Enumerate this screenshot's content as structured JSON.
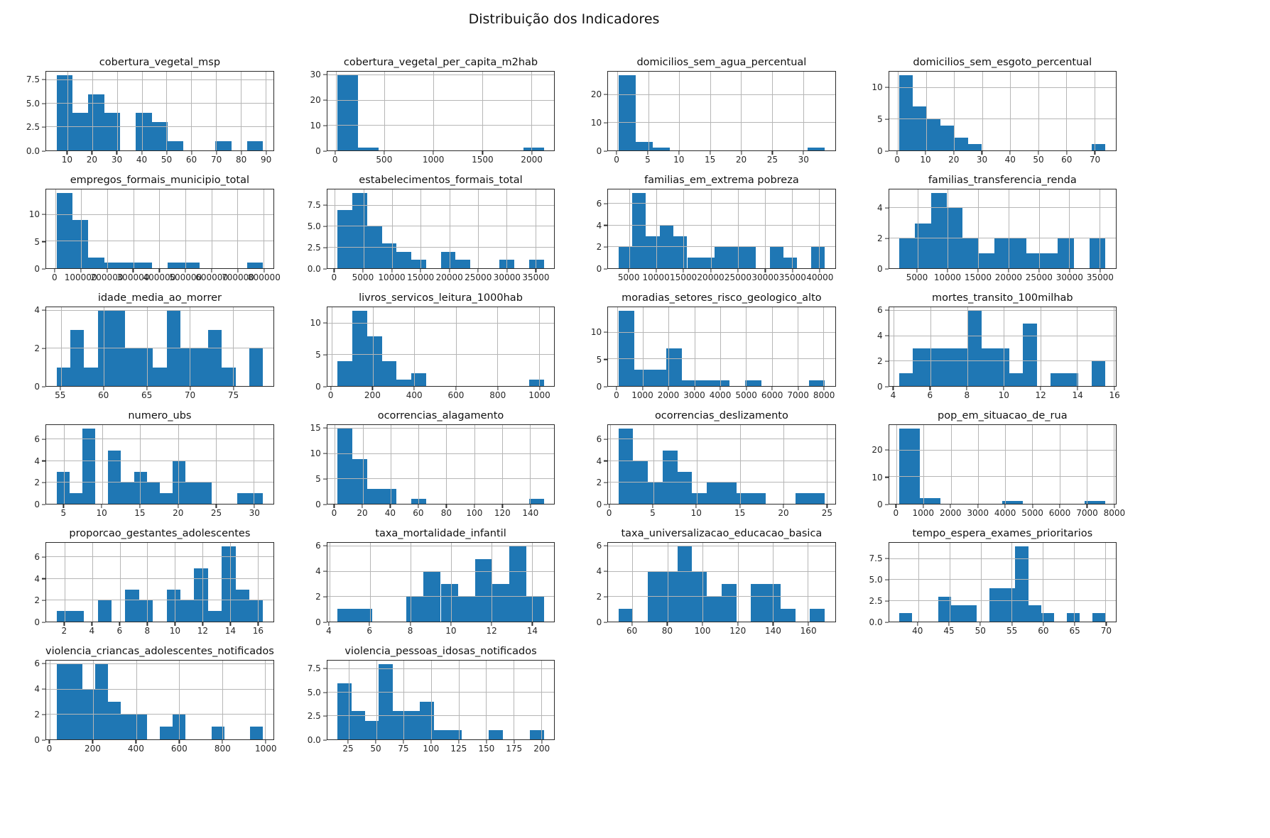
{
  "figure": {
    "title": "Distribuição dos Indicadores"
  },
  "colors": {
    "bar": "#1f77b4",
    "grid": "#b6b6b6",
    "spine": "#2b2b2b",
    "text": "#262626"
  },
  "chart_data": [
    {
      "type": "histogram",
      "title": "cobertura_vegetal_msp",
      "bin_start": 5.5,
      "bin_end": 89,
      "bins": [
        8,
        4,
        6,
        4,
        0,
        4,
        3,
        1,
        0,
        0,
        1,
        0,
        1
      ],
      "xticks": [
        10,
        20,
        30,
        40,
        50,
        60,
        70,
        80,
        90
      ],
      "yticks": [
        {
          "v": 0,
          "label": "0.0"
        },
        {
          "v": 2.5,
          "label": "2.5"
        },
        {
          "v": 5,
          "label": "5.0"
        },
        {
          "v": 7.5,
          "label": "7.5"
        }
      ]
    },
    {
      "type": "histogram",
      "title": "cobertura_vegetal_per_capita_m2hab",
      "bin_start": 20,
      "bin_end": 2130,
      "bins": [
        30,
        1,
        0,
        0,
        0,
        0,
        0,
        0,
        0,
        1
      ],
      "xticks": [
        0,
        500,
        1000,
        1500,
        2000
      ],
      "yticks": [
        {
          "v": 0,
          "label": "0"
        },
        {
          "v": 10,
          "label": "10"
        },
        {
          "v": 20,
          "label": "20"
        },
        {
          "v": 30,
          "label": "30"
        }
      ]
    },
    {
      "type": "histogram",
      "title": "domicilios_sem_agua_percentual",
      "bin_start": 0.2,
      "bin_end": 33.5,
      "bins": [
        27,
        3,
        1,
        0,
        0,
        0,
        0,
        0,
        0,
        0,
        0,
        1
      ],
      "xticks": [
        0,
        5,
        10,
        15,
        20,
        25,
        30
      ],
      "yticks": [
        {
          "v": 0,
          "label": "0"
        },
        {
          "v": 10,
          "label": "10"
        },
        {
          "v": 20,
          "label": "20"
        }
      ]
    },
    {
      "type": "histogram",
      "title": "domicilios_sem_esgoto_percentual",
      "bin_start": 0.5,
      "bin_end": 74,
      "bins": [
        12,
        7,
        5,
        4,
        2,
        1,
        0,
        0,
        0,
        0,
        0,
        0,
        0,
        0,
        1
      ],
      "xticks": [
        0,
        10,
        20,
        30,
        40,
        50,
        60,
        70
      ],
      "yticks": [
        {
          "v": 0,
          "label": "0"
        },
        {
          "v": 5,
          "label": "5"
        },
        {
          "v": 10,
          "label": "10"
        }
      ]
    },
    {
      "type": "histogram",
      "title": "empregos_formais_municipio_total",
      "bin_start": 5000,
      "bin_end": 798000,
      "bins": [
        14,
        9,
        2,
        1,
        1,
        1,
        0,
        1,
        1,
        0,
        0,
        0,
        1
      ],
      "xticks": [
        0,
        100000,
        200000,
        300000,
        400000,
        500000,
        600000,
        700000,
        800000
      ],
      "yticks": [
        {
          "v": 0,
          "label": "0"
        },
        {
          "v": 5,
          "label": "5"
        },
        {
          "v": 10,
          "label": "10"
        }
      ]
    },
    {
      "type": "histogram",
      "title": "estabelecimentos_formais_total",
      "bin_start": 500,
      "bin_end": 36500,
      "bins": [
        7,
        9,
        5,
        3,
        2,
        1,
        0,
        2,
        1,
        0,
        0,
        1,
        0,
        1
      ],
      "xticks": [
        0,
        5000,
        10000,
        15000,
        20000,
        25000,
        30000,
        35000
      ],
      "yticks": [
        {
          "v": 0,
          "label": "0.0"
        },
        {
          "v": 2.5,
          "label": "2.5"
        },
        {
          "v": 5,
          "label": "5.0"
        },
        {
          "v": 7.5,
          "label": "7.5"
        }
      ]
    },
    {
      "type": "histogram",
      "title": "familias_em_extrema pobreza",
      "bin_start": 3000,
      "bin_end": 41000,
      "bins": [
        2,
        7,
        3,
        4,
        3,
        1,
        1,
        2,
        2,
        2,
        0,
        2,
        1,
        0,
        2
      ],
      "xticks": [
        5000,
        10000,
        15000,
        20000,
        25000,
        30000,
        35000,
        40000
      ],
      "yticks": [
        {
          "v": 0,
          "label": "0"
        },
        {
          "v": 2,
          "label": "2"
        },
        {
          "v": 4,
          "label": "4"
        },
        {
          "v": 6,
          "label": "6"
        }
      ]
    },
    {
      "type": "histogram",
      "title": "familias_transferencia_renda",
      "bin_start": 2000,
      "bin_end": 36000,
      "bins": [
        2,
        3,
        5,
        4,
        2,
        1,
        2,
        2,
        1,
        1,
        2,
        0,
        2
      ],
      "xticks": [
        5000,
        10000,
        15000,
        20000,
        25000,
        30000,
        35000
      ],
      "yticks": [
        {
          "v": 0,
          "label": "0"
        },
        {
          "v": 2,
          "label": "2"
        },
        {
          "v": 4,
          "label": "4"
        }
      ]
    },
    {
      "type": "histogram",
      "title": "idade_media_ao_morrer",
      "bin_start": 54.5,
      "bin_end": 78.5,
      "bins": [
        1,
        3,
        1,
        4,
        4,
        2,
        2,
        1,
        4,
        2,
        2,
        3,
        1,
        0,
        2
      ],
      "xticks": [
        55,
        60,
        65,
        70,
        75
      ],
      "yticks": [
        {
          "v": 0,
          "label": "0"
        },
        {
          "v": 2,
          "label": "2"
        },
        {
          "v": 4,
          "label": "4"
        }
      ]
    },
    {
      "type": "histogram",
      "title": "livros_servicos_leitura_1000hab",
      "bin_start": 30,
      "bin_end": 1024,
      "bins": [
        4,
        12,
        8,
        4,
        1,
        2,
        0,
        0,
        0,
        0,
        0,
        0,
        0,
        1
      ],
      "xticks": [
        0,
        200,
        400,
        600,
        800,
        1000
      ],
      "yticks": [
        {
          "v": 0,
          "label": "0"
        },
        {
          "v": 5,
          "label": "5"
        },
        {
          "v": 10,
          "label": "10"
        }
      ]
    },
    {
      "type": "histogram",
      "title": "moradias_setores_risco_geologico_alto",
      "bin_start": 50,
      "bin_end": 8050,
      "bins": [
        14,
        3,
        3,
        7,
        1,
        1,
        1,
        0,
        1,
        0,
        0,
        0,
        1
      ],
      "xticks": [
        0,
        1000,
        2000,
        3000,
        4000,
        5000,
        6000,
        7000,
        8000
      ],
      "yticks": [
        {
          "v": 0,
          "label": "0"
        },
        {
          "v": 5,
          "label": "5"
        },
        {
          "v": 10,
          "label": "10"
        }
      ]
    },
    {
      "type": "histogram",
      "title": "mortes_transito_100milhab",
      "bin_start": 4.3,
      "bin_end": 15.55,
      "bins": [
        1,
        3,
        3,
        3,
        3,
        6,
        3,
        3,
        1,
        5,
        0,
        1,
        1,
        0,
        2
      ],
      "xticks": [
        4,
        6,
        8,
        10,
        12,
        14,
        16
      ],
      "yticks": [
        {
          "v": 0,
          "label": "0"
        },
        {
          "v": 2,
          "label": "2"
        },
        {
          "v": 4,
          "label": "4"
        },
        {
          "v": 6,
          "label": "6"
        }
      ]
    },
    {
      "type": "histogram",
      "title": "numero_ubs",
      "bin_start": 4,
      "bin_end": 31.2,
      "bins": [
        3,
        1,
        7,
        0,
        5,
        2,
        3,
        2,
        1,
        4,
        2,
        2,
        0,
        0,
        1,
        1
      ],
      "xticks": [
        5,
        10,
        15,
        20,
        25,
        30
      ],
      "yticks": [
        {
          "v": 0,
          "label": "0"
        },
        {
          "v": 2,
          "label": "2"
        },
        {
          "v": 4,
          "label": "4"
        },
        {
          "v": 6,
          "label": "6"
        }
      ]
    },
    {
      "type": "histogram",
      "title": "ocorrencias_alagamento",
      "bin_start": 2,
      "bin_end": 150,
      "bins": [
        15,
        9,
        3,
        3,
        0,
        1,
        0,
        0,
        0,
        0,
        0,
        0,
        0,
        1
      ],
      "xticks": [
        0,
        20,
        40,
        60,
        80,
        100,
        120,
        140
      ],
      "yticks": [
        {
          "v": 0,
          "label": "0"
        },
        {
          "v": 5,
          "label": "5"
        },
        {
          "v": 10,
          "label": "10"
        },
        {
          "v": 15,
          "label": "15"
        }
      ]
    },
    {
      "type": "histogram",
      "title": "ocorrencias_deslizamento",
      "bin_start": 1,
      "bin_end": 24.8,
      "bins": [
        7,
        4,
        2,
        5,
        3,
        1,
        2,
        2,
        1,
        1,
        0,
        0,
        1,
        1
      ],
      "xticks": [
        0,
        5,
        10,
        15,
        20,
        25
      ],
      "yticks": [
        {
          "v": 0,
          "label": "0"
        },
        {
          "v": 2,
          "label": "2"
        },
        {
          "v": 4,
          "label": "4"
        },
        {
          "v": 6,
          "label": "6"
        }
      ]
    },
    {
      "type": "histogram",
      "title": "pop_em_situacao_de_rua",
      "bin_start": 100,
      "bin_end": 7700,
      "bins": [
        28,
        2,
        0,
        0,
        0,
        1,
        0,
        0,
        0,
        1
      ],
      "xticks": [
        0,
        1000,
        2000,
        3000,
        4000,
        5000,
        6000,
        7000,
        8000
      ],
      "yticks": [
        {
          "v": 0,
          "label": "0"
        },
        {
          "v": 10,
          "label": "10"
        },
        {
          "v": 20,
          "label": "20"
        }
      ]
    },
    {
      "type": "histogram",
      "title": "proporcao_gestantes_adolescentes",
      "bin_start": 1.4,
      "bin_end": 16.4,
      "bins": [
        1,
        1,
        0,
        2,
        0,
        3,
        2,
        0,
        3,
        2,
        5,
        1,
        7,
        3,
        2
      ],
      "xticks": [
        2,
        4,
        6,
        8,
        10,
        12,
        14,
        16
      ],
      "yticks": [
        {
          "v": 0,
          "label": "0"
        },
        {
          "v": 2,
          "label": "2"
        },
        {
          "v": 4,
          "label": "4"
        },
        {
          "v": 6,
          "label": "6"
        }
      ]
    },
    {
      "type": "histogram",
      "title": "taxa_mortalidade_infantil",
      "bin_start": 4.4,
      "bin_end": 14.6,
      "bins": [
        1,
        1,
        0,
        0,
        2,
        4,
        3,
        2,
        5,
        3,
        6,
        2
      ],
      "xticks": [
        4,
        6,
        8,
        10,
        12,
        14
      ],
      "yticks": [
        {
          "v": 0,
          "label": "0"
        },
        {
          "v": 2,
          "label": "2"
        },
        {
          "v": 4,
          "label": "4"
        },
        {
          "v": 6,
          "label": "6"
        }
      ]
    },
    {
      "type": "histogram",
      "title": "taxa_universalizacao_educacao_basica",
      "bin_start": 52,
      "bin_end": 169.6,
      "bins": [
        1,
        0,
        4,
        4,
        6,
        4,
        2,
        3,
        0,
        3,
        3,
        1,
        0,
        1
      ],
      "xticks": [
        60,
        80,
        100,
        120,
        140,
        160
      ],
      "yticks": [
        {
          "v": 0,
          "label": "0"
        },
        {
          "v": 2,
          "label": "2"
        },
        {
          "v": 4,
          "label": "4"
        },
        {
          "v": 6,
          "label": "6"
        }
      ]
    },
    {
      "type": "histogram",
      "title": "tempo_espera_exames_prioritarios",
      "bin_start": 37,
      "bin_end": 70,
      "bins": [
        1,
        0,
        0,
        3,
        2,
        2,
        0,
        4,
        4,
        9,
        2,
        1,
        0,
        1,
        0,
        1
      ],
      "xticks": [
        40,
        45,
        50,
        55,
        60,
        65,
        70
      ],
      "yticks": [
        {
          "v": 0,
          "label": "0.0"
        },
        {
          "v": 2.5,
          "label": "2.5"
        },
        {
          "v": 5,
          "label": "5.0"
        },
        {
          "v": 7.5,
          "label": "7.5"
        }
      ]
    },
    {
      "type": "histogram",
      "title": "violencia_criancas_adolescentes_notificados",
      "bin_start": 30,
      "bin_end": 990,
      "bins": [
        6,
        6,
        4,
        6,
        3,
        2,
        2,
        0,
        1,
        2,
        0,
        0,
        1,
        0,
        0,
        1
      ],
      "xticks": [
        0,
        200,
        400,
        600,
        800,
        1000
      ],
      "yticks": [
        {
          "v": 0,
          "label": "0"
        },
        {
          "v": 2,
          "label": "2"
        },
        {
          "v": 4,
          "label": "4"
        },
        {
          "v": 6,
          "label": "6"
        }
      ]
    },
    {
      "type": "histogram",
      "title": "violencia_pessoas_idosas_notificados",
      "bin_start": 15,
      "bin_end": 202.5,
      "bins": [
        6,
        3,
        2,
        8,
        3,
        3,
        4,
        1,
        1,
        0,
        0,
        1,
        0,
        0,
        1
      ],
      "xticks": [
        25,
        50,
        75,
        100,
        125,
        150,
        175,
        200
      ],
      "yticks": [
        {
          "v": 0,
          "label": "0.0"
        },
        {
          "v": 2.5,
          "label": "2.5"
        },
        {
          "v": 5,
          "label": "5.0"
        },
        {
          "v": 7.5,
          "label": "7.5"
        }
      ]
    }
  ]
}
